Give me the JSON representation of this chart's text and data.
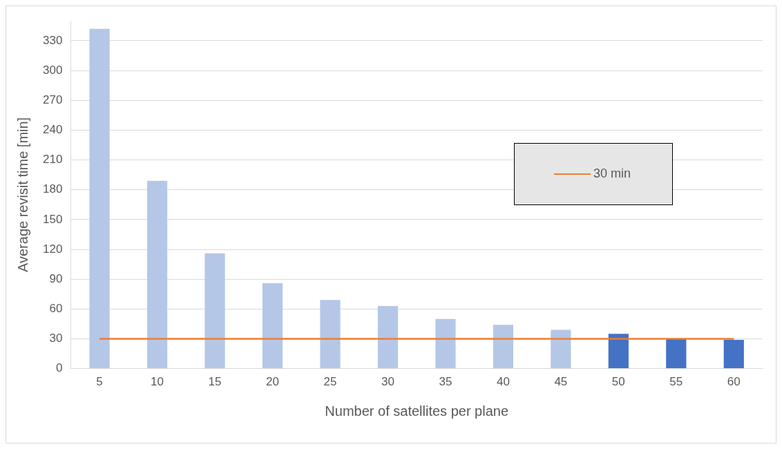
{
  "chart_data": {
    "type": "bar",
    "xlabel": "Number of satellites per plane",
    "ylabel": "Average revisit time [min]",
    "categories": [
      "5",
      "10",
      "15",
      "20",
      "25",
      "30",
      "35",
      "40",
      "45",
      "50",
      "55",
      "60"
    ],
    "series": [
      {
        "values": [
          342,
          189,
          116,
          86,
          69,
          63,
          50,
          44,
          39,
          35,
          30,
          29
        ],
        "colors": [
          "#b4c7e7",
          "#b4c7e7",
          "#b4c7e7",
          "#b4c7e7",
          "#b4c7e7",
          "#b4c7e7",
          "#b4c7e7",
          "#b4c7e7",
          "#b4c7e7",
          "#4472c4",
          "#4472c4",
          "#4472c4"
        ]
      },
      {
        "type": "line",
        "name": "30 min",
        "color": "#ed7d31",
        "values": [
          30,
          30,
          30,
          30,
          30,
          30,
          30,
          30,
          30,
          30,
          30,
          30
        ]
      }
    ],
    "ylim": [
      0,
      350
    ],
    "yticks": [
      0,
      30,
      60,
      90,
      120,
      150,
      180,
      210,
      240,
      270,
      300,
      330
    ],
    "grid": "y",
    "legend": "right",
    "marker": "none"
  }
}
